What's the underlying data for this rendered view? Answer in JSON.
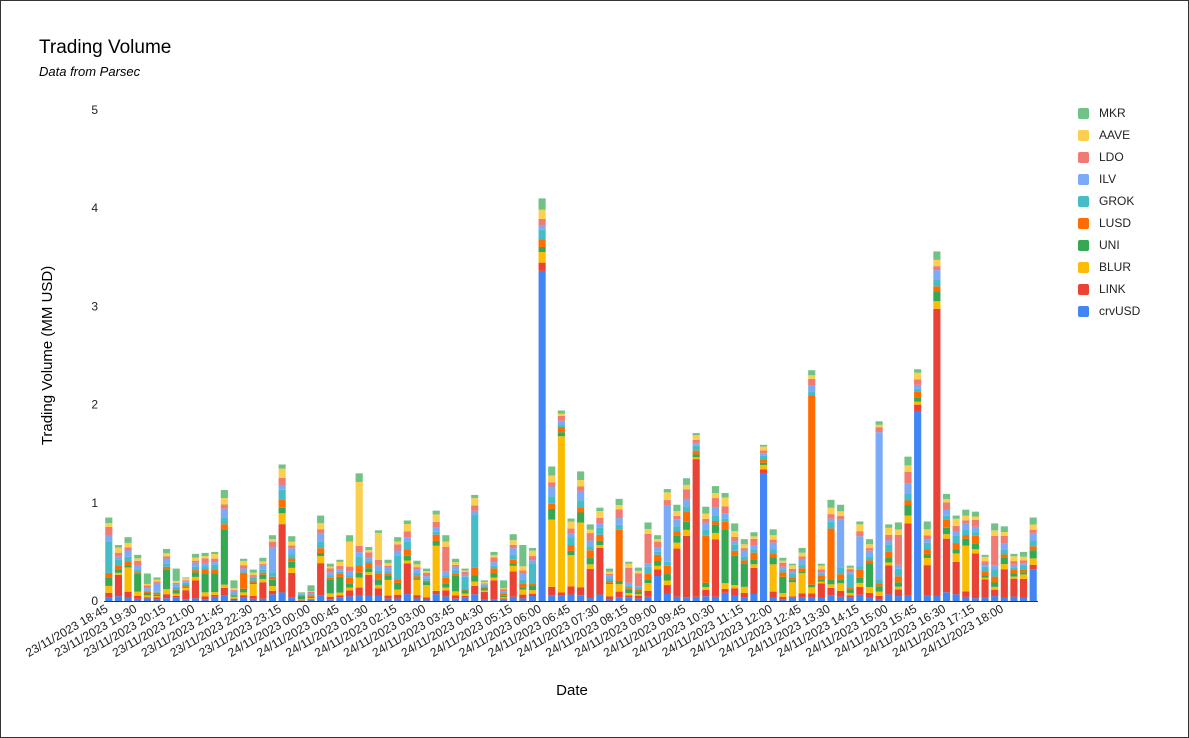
{
  "chart_data": {
    "type": "bar",
    "stacked": true,
    "title": "Trading Volume",
    "subtitle": "Data from Parsec",
    "xlabel": "Date",
    "ylabel": "Trading Volume (MM USD)",
    "ylim": [
      0,
      5
    ],
    "yticks": [
      "0",
      "1",
      "2",
      "3",
      "4",
      "5"
    ],
    "grid": false,
    "legend_position": "right",
    "legend_order": [
      "MKR",
      "AAVE",
      "LDO",
      "ILV",
      "GROK",
      "LUSD",
      "UNI",
      "BLUR",
      "LINK",
      "crvUSD"
    ],
    "colors": {
      "crvUSD": "#4285f4",
      "LINK": "#ea4335",
      "BLUR": "#fbbc04",
      "UNI": "#34a853",
      "LUSD": "#ff6d01",
      "GROK": "#46bdc6",
      "ILV": "#7baaf7",
      "LDO": "#f07b72",
      "AAVE": "#fcd04f",
      "MKR": "#71c287"
    },
    "x_tick_labels": [
      "23/11/2023 18:45",
      "23/11/2023 19:30",
      "23/11/2023 20:15",
      "23/11/2023 21:00",
      "23/11/2023 21:45",
      "23/11/2023 22:30",
      "23/11/2023 23:15",
      "24/11/2023 00:00",
      "24/11/2023 00:45",
      "24/11/2023 01:30",
      "24/11/2023 02:15",
      "24/11/2023 03:00",
      "24/11/2023 03:45",
      "24/11/2023 04:30",
      "24/11/2023 05:15",
      "24/11/2023 06:00",
      "24/11/2023 06:45",
      "24/11/2023 07:30",
      "24/11/2023 08:15",
      "24/11/2023 09:00",
      "24/11/2023 09:45",
      "24/11/2023 10:30",
      "24/11/2023 11:15",
      "24/11/2023 12:00",
      "24/11/2023 12:45",
      "24/11/2023 13:30",
      "24/11/2023 14:15",
      "24/11/2023 15:00",
      "24/11/2023 15:45",
      "24/11/2023 16:30",
      "24/11/2023 17:15",
      "24/11/2023 18:00"
    ],
    "bar_totals": [
      0.85,
      0.57,
      0.65,
      0.47,
      0.28,
      0.24,
      0.53,
      0.33,
      0.24,
      0.48,
      0.49,
      0.5,
      1.13,
      0.21,
      0.43,
      0.32,
      0.44,
      0.67,
      1.39,
      0.66,
      0.09,
      0.16,
      0.87,
      0.38,
      0.42,
      0.67,
      1.3,
      0.55,
      0.72,
      0.42,
      0.65,
      0.82,
      0.41,
      0.33,
      0.92,
      0.67,
      0.43,
      0.33,
      1.08,
      0.21,
      0.5,
      0.21,
      0.68,
      0.57,
      0.54,
      4.1,
      1.37,
      1.94,
      0.84,
      1.32,
      0.78,
      0.95,
      0.33,
      1.04,
      0.4,
      0.34,
      0.8,
      0.67,
      1.14,
      0.98,
      1.25,
      1.71,
      0.96,
      1.17,
      1.1,
      0.79,
      0.63,
      0.7,
      1.59,
      0.73,
      0.44,
      0.38,
      0.54,
      2.35,
      0.38,
      1.03,
      0.98,
      0.36,
      0.81,
      0.63,
      1.83,
      0.78,
      0.8,
      1.47,
      2.36,
      0.81,
      3.56,
      1.09,
      0.87,
      0.93,
      0.91,
      0.47,
      0.79,
      0.76,
      0.48,
      0.5,
      0.85
    ],
    "dominant_series": [
      "GROK",
      "LINK",
      "BLUR",
      "UNI",
      "MKR",
      "ILV",
      "UNI",
      "MKR",
      "LINK",
      "LINK",
      "UNI",
      "UNI",
      "UNI",
      "MKR",
      "LUSD",
      "BLUR",
      "LINK",
      "ILV",
      "LINK",
      "LINK",
      "UNI",
      "MKR",
      "LINK",
      "UNI",
      "UNI",
      "AAVE",
      "AAVE",
      "LINK",
      "AAVE",
      "BLUR",
      "GROK",
      "LINK",
      "BLUR",
      "BLUR",
      "BLUR",
      "LDO",
      "UNI",
      "GROK",
      "GROK",
      "LINK",
      "LINK",
      "MKR",
      "LINK",
      "MKR",
      "GROK",
      "crvUSD",
      "BLUR",
      "BLUR",
      "BLUR",
      "BLUR",
      "LINK",
      "LINK",
      "BLUR",
      "LUSD",
      "LDO",
      "LDO",
      "LDO",
      "crvUSD",
      "ILV",
      "LINK",
      "LINK",
      "LINK",
      "LUSD",
      "LINK",
      "UNI",
      "UNI",
      "UNI",
      "LINK",
      "crvUSD",
      "BLUR",
      "UNI",
      "BLUR",
      "BLUR",
      "LUSD",
      "LINK",
      "LUSD",
      "ILV",
      "GROK",
      "ILV",
      "UNI",
      "ILV",
      "LINK",
      "LDO",
      "LINK",
      "crvUSD",
      "LINK",
      "LINK",
      "LINK",
      "LINK",
      "BLUR",
      "LINK",
      "LINK",
      "LDO",
      "LINK",
      "LINK",
      "LINK",
      "crvUSD"
    ]
  }
}
